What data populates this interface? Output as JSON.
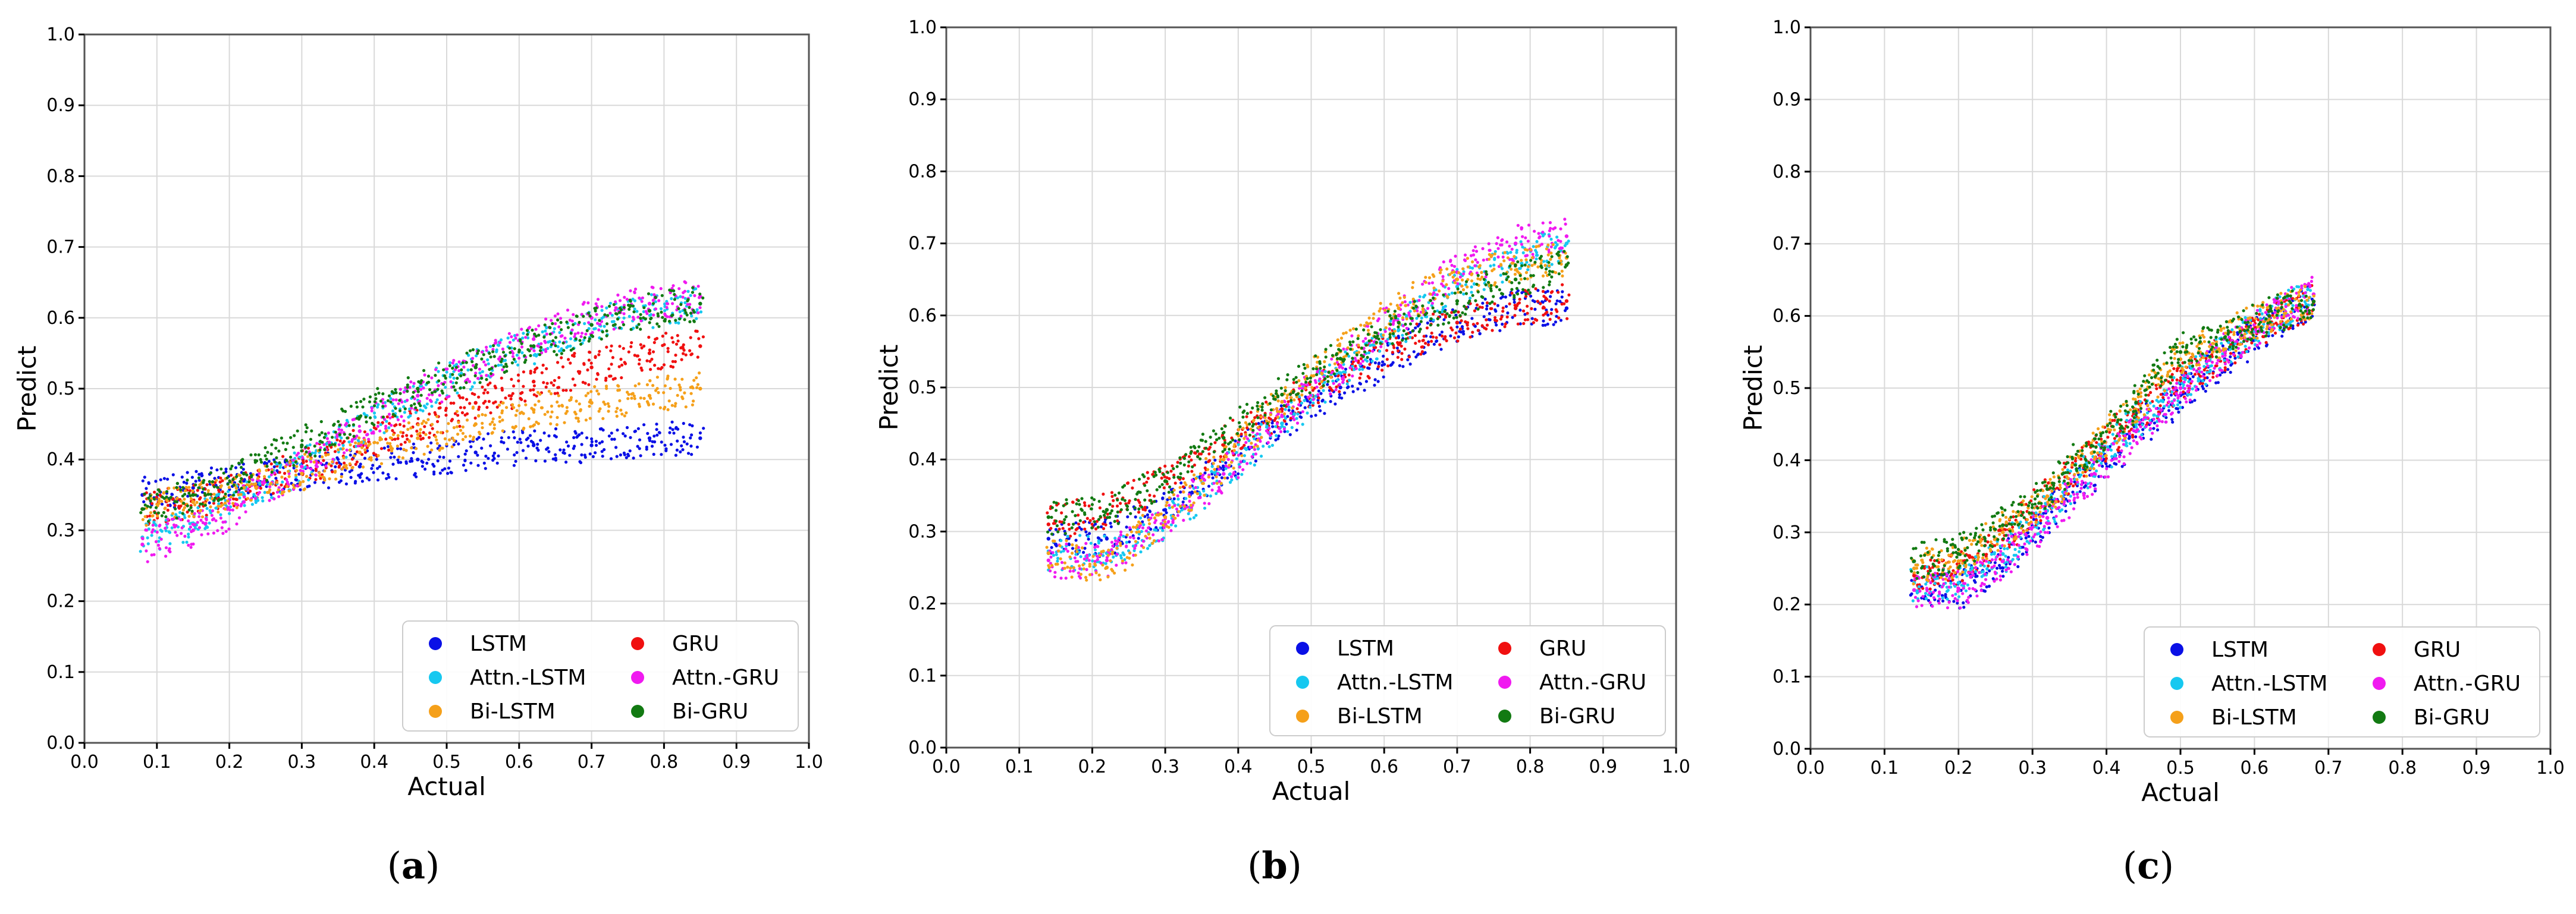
{
  "figure": {
    "colors": {
      "LSTM": "#0a10e6",
      "GRU": "#f01010",
      "Attn.-LSTM": "#16c8f0",
      "Attn.-GRU": "#f01af0",
      "Bi-LSTM": "#f5a01a",
      "Bi-GRU": "#127a12",
      "grid": "#d9d9d9",
      "axis": "#000000"
    },
    "font_note": "axis ticks, labels and legend text only"
  },
  "chart_data": [
    {
      "type": "scatter",
      "panel_label": "a",
      "xlabel": "Actual",
      "ylabel": "Predict",
      "xlim": [
        0.0,
        1.0
      ],
      "ylim": [
        0.0,
        1.0
      ],
      "xticks": [
        "0.0",
        "0.1",
        "0.2",
        "0.3",
        "0.4",
        "0.5",
        "0.6",
        "0.7",
        "0.8",
        "0.9",
        "1.0"
      ],
      "yticks": [
        "0.0",
        "0.1",
        "0.2",
        "0.3",
        "0.4",
        "0.5",
        "0.6",
        "0.7",
        "0.8",
        "0.9",
        "1.0"
      ],
      "grid": true,
      "legend": {
        "position": "bottom-right",
        "columns": 2,
        "entries": [
          "LSTM",
          "GRU",
          "Attn.-LSTM",
          "Attn.-GRU",
          "Bi-LSTM",
          "Bi-GRU"
        ]
      },
      "series": [
        {
          "name": "LSTM",
          "x": [
            0.08,
            0.15,
            0.22,
            0.3,
            0.38,
            0.46,
            0.54,
            0.62,
            0.7,
            0.78,
            0.85
          ],
          "y": [
            0.35,
            0.36,
            0.37,
            0.38,
            0.39,
            0.4,
            0.41,
            0.42,
            0.42,
            0.43,
            0.43
          ]
        },
        {
          "name": "GRU",
          "x": [
            0.08,
            0.15,
            0.22,
            0.3,
            0.38,
            0.46,
            0.54,
            0.62,
            0.7,
            0.78,
            0.85
          ],
          "y": [
            0.33,
            0.34,
            0.36,
            0.39,
            0.42,
            0.45,
            0.48,
            0.51,
            0.53,
            0.55,
            0.56
          ]
        },
        {
          "name": "Attn.-LSTM",
          "x": [
            0.08,
            0.15,
            0.22,
            0.3,
            0.38,
            0.46,
            0.54,
            0.62,
            0.7,
            0.78,
            0.85
          ],
          "y": [
            0.29,
            0.31,
            0.35,
            0.39,
            0.44,
            0.49,
            0.53,
            0.56,
            0.59,
            0.61,
            0.62
          ]
        },
        {
          "name": "Attn.-GRU",
          "x": [
            0.08,
            0.15,
            0.22,
            0.3,
            0.38,
            0.46,
            0.54,
            0.62,
            0.7,
            0.78,
            0.85
          ],
          "y": [
            0.28,
            0.3,
            0.34,
            0.39,
            0.44,
            0.49,
            0.53,
            0.57,
            0.6,
            0.62,
            0.63
          ]
        },
        {
          "name": "Bi-LSTM",
          "x": [
            0.08,
            0.15,
            0.22,
            0.3,
            0.38,
            0.46,
            0.54,
            0.62,
            0.7,
            0.78,
            0.85
          ],
          "y": [
            0.33,
            0.34,
            0.36,
            0.38,
            0.41,
            0.43,
            0.45,
            0.47,
            0.48,
            0.49,
            0.5
          ]
        },
        {
          "name": "Bi-GRU",
          "x": [
            0.08,
            0.15,
            0.22,
            0.3,
            0.38,
            0.46,
            0.54,
            0.62,
            0.7,
            0.78,
            0.85
          ],
          "y": [
            0.33,
            0.35,
            0.38,
            0.42,
            0.46,
            0.5,
            0.53,
            0.56,
            0.59,
            0.61,
            0.62
          ]
        }
      ]
    },
    {
      "type": "scatter",
      "panel_label": "b",
      "xlabel": "Actual",
      "ylabel": "Predict",
      "xlim": [
        0.0,
        1.0
      ],
      "ylim": [
        0.0,
        1.0
      ],
      "xticks": [
        "0.0",
        "0.1",
        "0.2",
        "0.3",
        "0.4",
        "0.5",
        "0.6",
        "0.7",
        "0.8",
        "0.9",
        "1.0"
      ],
      "yticks": [
        "0.0",
        "0.1",
        "0.2",
        "0.3",
        "0.4",
        "0.5",
        "0.6",
        "0.7",
        "0.8",
        "0.9",
        "1.0"
      ],
      "grid": true,
      "legend": {
        "position": "bottom-right",
        "columns": 2,
        "entries": [
          "LSTM",
          "GRU",
          "Attn.-LSTM",
          "Attn.-GRU",
          "Bi-LSTM",
          "Bi-GRU"
        ]
      },
      "series": [
        {
          "name": "LSTM",
          "x": [
            0.14,
            0.22,
            0.3,
            0.38,
            0.46,
            0.54,
            0.62,
            0.7,
            0.78,
            0.85
          ],
          "y": [
            0.29,
            0.29,
            0.33,
            0.39,
            0.45,
            0.5,
            0.55,
            0.59,
            0.61,
            0.61
          ]
        },
        {
          "name": "GRU",
          "x": [
            0.14,
            0.22,
            0.3,
            0.38,
            0.46,
            0.54,
            0.62,
            0.7,
            0.78,
            0.85
          ],
          "y": [
            0.31,
            0.33,
            0.37,
            0.42,
            0.47,
            0.52,
            0.56,
            0.59,
            0.61,
            0.62
          ]
        },
        {
          "name": "Attn.-LSTM",
          "x": [
            0.14,
            0.22,
            0.3,
            0.38,
            0.46,
            0.54,
            0.62,
            0.7,
            0.78,
            0.85
          ],
          "y": [
            0.27,
            0.27,
            0.31,
            0.38,
            0.45,
            0.52,
            0.58,
            0.64,
            0.68,
            0.7
          ]
        },
        {
          "name": "Attn.-GRU",
          "x": [
            0.14,
            0.22,
            0.3,
            0.38,
            0.46,
            0.54,
            0.62,
            0.7,
            0.78,
            0.85
          ],
          "y": [
            0.26,
            0.26,
            0.31,
            0.38,
            0.46,
            0.53,
            0.6,
            0.66,
            0.7,
            0.71
          ]
        },
        {
          "name": "Bi-LSTM",
          "x": [
            0.14,
            0.22,
            0.3,
            0.38,
            0.46,
            0.54,
            0.62,
            0.7,
            0.78,
            0.85
          ],
          "y": [
            0.27,
            0.25,
            0.32,
            0.4,
            0.48,
            0.55,
            0.61,
            0.65,
            0.67,
            0.68
          ]
        },
        {
          "name": "Bi-GRU",
          "x": [
            0.14,
            0.22,
            0.3,
            0.38,
            0.46,
            0.54,
            0.62,
            0.7,
            0.78,
            0.85
          ],
          "y": [
            0.32,
            0.33,
            0.37,
            0.43,
            0.49,
            0.54,
            0.59,
            0.62,
            0.65,
            0.67
          ]
        }
      ]
    },
    {
      "type": "scatter",
      "panel_label": "c",
      "xlabel": "Actual",
      "ylabel": "Predict",
      "xlim": [
        0.0,
        1.0
      ],
      "ylim": [
        0.0,
        1.0
      ],
      "xticks": [
        "0.0",
        "0.1",
        "0.2",
        "0.3",
        "0.4",
        "0.5",
        "0.6",
        "0.7",
        "0.8",
        "0.9",
        "1.0"
      ],
      "yticks": [
        "0.0",
        "0.1",
        "0.2",
        "0.3",
        "0.4",
        "0.5",
        "0.6",
        "0.7",
        "0.8",
        "0.9",
        "1.0"
      ],
      "grid": true,
      "legend": {
        "position": "bottom-right",
        "columns": 2,
        "entries": [
          "LSTM",
          "GRU",
          "Attn.-LSTM",
          "Attn.-GRU",
          "Bi-LSTM",
          "Bi-GRU"
        ]
      },
      "series": [
        {
          "name": "LSTM",
          "x": [
            0.14,
            0.2,
            0.26,
            0.32,
            0.38,
            0.44,
            0.5,
            0.56,
            0.62,
            0.68
          ],
          "y": [
            0.22,
            0.22,
            0.26,
            0.32,
            0.38,
            0.44,
            0.49,
            0.54,
            0.59,
            0.62
          ]
        },
        {
          "name": "GRU",
          "x": [
            0.14,
            0.2,
            0.26,
            0.32,
            0.38,
            0.44,
            0.5,
            0.56,
            0.62,
            0.68
          ],
          "y": [
            0.24,
            0.25,
            0.29,
            0.35,
            0.41,
            0.46,
            0.51,
            0.55,
            0.59,
            0.62
          ]
        },
        {
          "name": "Attn.-LSTM",
          "x": [
            0.14,
            0.2,
            0.26,
            0.32,
            0.38,
            0.44,
            0.5,
            0.56,
            0.62,
            0.68
          ],
          "y": [
            0.23,
            0.23,
            0.27,
            0.33,
            0.39,
            0.45,
            0.5,
            0.55,
            0.6,
            0.63
          ]
        },
        {
          "name": "Attn.-GRU",
          "x": [
            0.14,
            0.2,
            0.26,
            0.32,
            0.38,
            0.44,
            0.5,
            0.56,
            0.62,
            0.68
          ],
          "y": [
            0.22,
            0.22,
            0.26,
            0.32,
            0.38,
            0.44,
            0.5,
            0.55,
            0.6,
            0.63
          ]
        },
        {
          "name": "Bi-LSTM",
          "x": [
            0.14,
            0.2,
            0.26,
            0.32,
            0.38,
            0.44,
            0.5,
            0.56,
            0.62,
            0.68
          ],
          "y": [
            0.25,
            0.26,
            0.3,
            0.35,
            0.41,
            0.47,
            0.54,
            0.57,
            0.6,
            0.62
          ]
        },
        {
          "name": "Bi-GRU",
          "x": [
            0.14,
            0.2,
            0.26,
            0.32,
            0.38,
            0.44,
            0.5,
            0.56,
            0.62,
            0.68
          ],
          "y": [
            0.26,
            0.27,
            0.31,
            0.36,
            0.42,
            0.48,
            0.55,
            0.57,
            0.6,
            0.62
          ]
        }
      ]
    }
  ]
}
